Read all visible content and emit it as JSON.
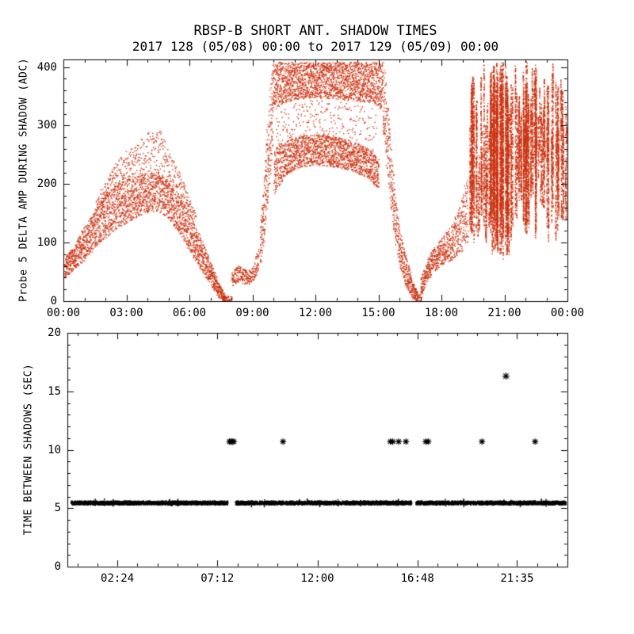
{
  "figure": {
    "title": "RBSP-B SHORT ANT. SHADOW TIMES",
    "subtitle": "2017 128 (05/08) 00:00 to 2017 129 (05/09) 00:00",
    "background": "#ffffff"
  },
  "colors": {
    "top_scatter": "#cc3311",
    "bottom_scatter": "#000000",
    "axis": "#000000",
    "text": "#000000"
  },
  "chart_data": [
    {
      "type": "scatter",
      "panel": "top",
      "ylabel": "Probe 5 DELTA AMP DURING SHADOW (ADC)",
      "ylim": [
        0,
        413
      ],
      "yticks": [
        0,
        100,
        200,
        300,
        400
      ],
      "ytick_labels": [
        "0",
        "100",
        "200",
        "300",
        "400"
      ],
      "y_minor_step": 20,
      "x_hours_range": [
        0,
        24
      ],
      "xticks_hours": [
        0,
        3,
        6,
        9,
        12,
        15,
        18,
        21,
        24
      ],
      "xtick_labels": [
        "00:00",
        "03:00",
        "06:00",
        "09:00",
        "12:00",
        "15:00",
        "18:00",
        "21:00",
        "00:00"
      ],
      "x_minor_step_hours": 1,
      "x_minor_offset_hours": 0,
      "marker": "dot",
      "bands": [
        {
          "name": "dawn-hump-core",
          "density": 7,
          "points": [
            [
              0.05,
              40,
              75
            ],
            [
              0.5,
              55,
              95
            ],
            [
              1.0,
              70,
              130
            ],
            [
              1.5,
              92,
              155
            ],
            [
              2.0,
              108,
              180
            ],
            [
              2.5,
              122,
              200
            ],
            [
              3.0,
              134,
              210
            ],
            [
              3.5,
              145,
              215
            ],
            [
              4.0,
              152,
              220
            ],
            [
              4.5,
              155,
              222
            ],
            [
              5.0,
              142,
              205
            ],
            [
              5.5,
              115,
              182
            ],
            [
              6.0,
              86,
              150
            ],
            [
              6.5,
              56,
              112
            ],
            [
              7.0,
              28,
              68
            ],
            [
              7.4,
              6,
              30
            ],
            [
              7.7,
              0,
              10
            ]
          ]
        },
        {
          "name": "dawn-hump-halo",
          "density": 2,
          "points": [
            [
              1.5,
              150,
              175
            ],
            [
              2.0,
              175,
              205
            ],
            [
              2.5,
              195,
              240
            ],
            [
              3.0,
              205,
              258
            ],
            [
              3.5,
              212,
              272
            ],
            [
              4.0,
              218,
              288
            ],
            [
              4.6,
              220,
              292
            ],
            [
              5.0,
              200,
              262
            ],
            [
              5.5,
              178,
              225
            ],
            [
              6.0,
              148,
              178
            ],
            [
              6.3,
              110,
              150
            ]
          ]
        },
        {
          "name": "zero-dip-1",
          "density": 2,
          "points": [
            [
              7.55,
              0,
              12
            ],
            [
              8.0,
              0,
              8
            ]
          ]
        },
        {
          "name": "morning-blip",
          "density": 4,
          "points": [
            [
              8.0,
              26,
              48
            ],
            [
              8.3,
              34,
              62
            ],
            [
              8.6,
              30,
              56
            ],
            [
              8.9,
              30,
              52
            ],
            [
              9.1,
              40,
              70
            ],
            [
              9.3,
              55,
              95
            ]
          ]
        },
        {
          "name": "noon-rise-edge",
          "density": 8,
          "points": [
            [
              9.35,
              60,
              120
            ],
            [
              9.5,
              95,
              190
            ],
            [
              9.65,
              140,
              280
            ],
            [
              9.8,
              200,
              360
            ],
            [
              9.95,
              255,
              409
            ]
          ]
        },
        {
          "name": "noon-top-band",
          "density": 8,
          "points": [
            [
              9.95,
              325,
              409
            ],
            [
              10.4,
              338,
              409
            ],
            [
              11.0,
              345,
              409
            ],
            [
              12.0,
              348,
              409
            ],
            [
              13.0,
              346,
              409
            ],
            [
              14.0,
              342,
              409
            ],
            [
              14.8,
              338,
              409
            ],
            [
              15.2,
              325,
              409
            ]
          ]
        },
        {
          "name": "noon-mid-band",
          "density": 7,
          "points": [
            [
              10.0,
              182,
              262
            ],
            [
              10.5,
              212,
              272
            ],
            [
              11.0,
              226,
              280
            ],
            [
              11.5,
              231,
              284
            ],
            [
              12.0,
              233,
              286
            ],
            [
              12.5,
              231,
              284
            ],
            [
              13.0,
              229,
              281
            ],
            [
              13.5,
              225,
              277
            ],
            [
              14.0,
              219,
              271
            ],
            [
              14.5,
              209,
              261
            ],
            [
              15.0,
              193,
              243
            ]
          ]
        },
        {
          "name": "noon-sparse-between",
          "density": 1,
          "points": [
            [
              10.1,
              265,
              330
            ],
            [
              12.0,
              288,
              348
            ],
            [
              14.9,
              245,
              330
            ]
          ]
        },
        {
          "name": "noon-fall-edge",
          "density": 7,
          "points": [
            [
              15.2,
              295,
              409
            ],
            [
              15.35,
              235,
              380
            ],
            [
              15.5,
              178,
              305
            ],
            [
              15.65,
              140,
              235
            ],
            [
              15.8,
              100,
              180
            ],
            [
              16.0,
              58,
              125
            ],
            [
              16.25,
              28,
              85
            ],
            [
              16.55,
              6,
              42
            ],
            [
              16.85,
              0,
              16
            ]
          ]
        },
        {
          "name": "zero-dip-2",
          "density": 2,
          "points": [
            [
              16.8,
              0,
              10
            ],
            [
              17.05,
              0,
              14
            ]
          ]
        },
        {
          "name": "evening-rise",
          "density": 6,
          "points": [
            [
              17.0,
              10,
              40
            ],
            [
              17.3,
              34,
              72
            ],
            [
              17.6,
              50,
              90
            ],
            [
              18.0,
              62,
              108
            ],
            [
              18.5,
              72,
              132
            ],
            [
              19.0,
              88,
              185
            ],
            [
              19.25,
              98,
              235
            ]
          ]
        }
      ],
      "streak_regions": [
        {
          "name": "evening-streaks-a",
          "count": 22,
          "t_range": [
            19.3,
            20.25
          ],
          "base_range": [
            90,
            180
          ],
          "top_range": [
            220,
            410
          ]
        },
        {
          "name": "evening-streaks-b",
          "count": 40,
          "t_range": [
            20.3,
            21.4
          ],
          "base_range": [
            70,
            160
          ],
          "top_range": [
            330,
            412
          ]
        },
        {
          "name": "evening-streaks-c",
          "count": 26,
          "t_range": [
            21.5,
            22.3
          ],
          "base_range": [
            120,
            240
          ],
          "top_range": [
            300,
            412
          ]
        },
        {
          "name": "evening-streaks-d",
          "count": 34,
          "t_range": [
            22.3,
            23.95
          ],
          "base_range": [
            100,
            260
          ],
          "top_range": [
            280,
            412
          ]
        },
        {
          "name": "evening-noise",
          "count": 30,
          "t_range": [
            19.4,
            23.95
          ],
          "base_range": [
            100,
            300
          ],
          "top_range": [
            150,
            405
          ]
        }
      ]
    },
    {
      "type": "scatter",
      "panel": "bottom",
      "ylabel": "TIME BETWEEN SHADOWS (SEC)",
      "ylim": [
        0,
        20
      ],
      "yticks": [
        0,
        5,
        10,
        15,
        20
      ],
      "ytick_labels": [
        "0",
        "5",
        "10",
        "15",
        "20"
      ],
      "y_minor_step": 1,
      "x_hours_range": [
        0,
        24
      ],
      "xticks_hours": [
        2.4,
        7.2,
        12.0,
        16.8,
        21.5833
      ],
      "xtick_labels": [
        "02:24",
        "07:12",
        "12:00",
        "16:48",
        "21:35"
      ],
      "x_minor_step_hours": 0.96,
      "x_minor_offset_hours": 0.48,
      "marker": "asterisk",
      "baseline": {
        "y": 5.5,
        "spread": 0.16,
        "segments": [
          [
            0.15,
            7.7
          ],
          [
            8.05,
            16.5
          ],
          [
            16.7,
            23.9
          ]
        ]
      },
      "outliers_y": 10.7,
      "outliers_t": [
        7.78,
        7.85,
        7.92,
        7.99,
        10.35,
        15.5,
        15.62,
        15.9,
        16.25,
        17.2,
        17.32,
        19.9,
        22.45
      ],
      "high_outlier": {
        "t": 21.05,
        "y": 16.3
      }
    }
  ]
}
